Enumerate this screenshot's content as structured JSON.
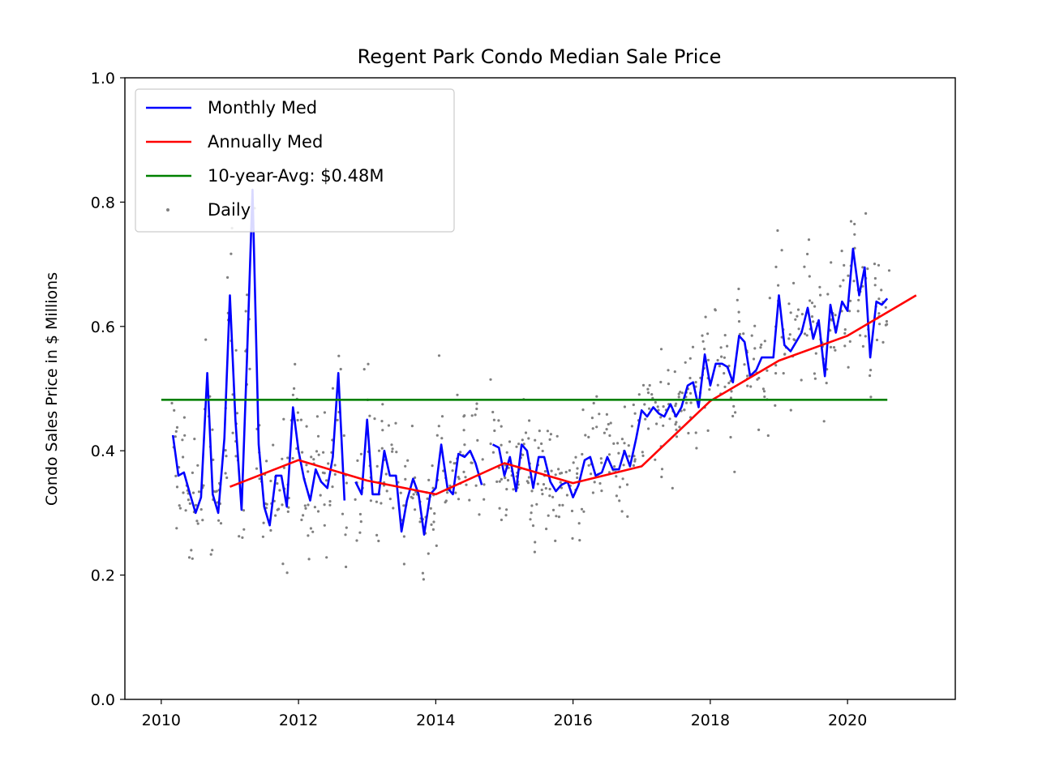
{
  "chart_data": {
    "type": "line",
    "title": "Regent Park Condo Median Sale Price",
    "xlabel": "",
    "ylabel": "Condo Sales Price in $ Millions",
    "xlim": [
      2009.47,
      2021.57
    ],
    "ylim": [
      0.0,
      1.0
    ],
    "x_ticks": [
      2010,
      2012,
      2014,
      2016,
      2018,
      2020
    ],
    "y_ticks": [
      0.0,
      0.2,
      0.4,
      0.6,
      0.8,
      1.0
    ],
    "x_tick_labels": [
      "2010",
      "2012",
      "2014",
      "2016",
      "2018",
      "2020"
    ],
    "y_tick_labels": [
      "0.0",
      "0.2",
      "0.4",
      "0.6",
      "0.8",
      "1.0"
    ],
    "legend_position": "top-left",
    "grid": false,
    "series": [
      {
        "name": "Monthly Med",
        "type": "line",
        "color": "#0000ff",
        "points": [
          [
            2010.17,
            0.425
          ],
          [
            2010.25,
            0.36
          ],
          [
            2010.33,
            0.365
          ],
          [
            2010.42,
            0.33
          ],
          [
            2010.5,
            0.3
          ],
          [
            2010.58,
            0.325
          ],
          [
            2010.67,
            0.525
          ],
          [
            2010.75,
            0.33
          ],
          [
            2010.83,
            0.3
          ],
          [
            2010.92,
            0.42
          ],
          [
            2011.0,
            0.65
          ],
          [
            2011.08,
            0.45
          ],
          [
            2011.17,
            0.305
          ],
          [
            2011.25,
            0.55
          ],
          [
            2011.33,
            0.82
          ],
          [
            2011.42,
            0.41
          ],
          [
            2011.5,
            0.31
          ],
          [
            2011.58,
            0.28
          ],
          [
            2011.67,
            0.36
          ],
          [
            2011.75,
            0.36
          ],
          [
            2011.83,
            0.31
          ],
          [
            2011.92,
            0.47
          ],
          [
            2012.0,
            0.4
          ],
          [
            2012.08,
            0.355
          ],
          [
            2012.17,
            0.32
          ],
          [
            2012.25,
            0.37
          ],
          [
            2012.33,
            0.35
          ],
          [
            2012.42,
            0.34
          ],
          [
            2012.5,
            0.39
          ],
          [
            2012.58,
            0.525
          ],
          [
            2012.67,
            0.32
          ],
          null,
          [
            2012.83,
            0.35
          ],
          [
            2012.92,
            0.33
          ],
          [
            2013.0,
            0.45
          ],
          [
            2013.08,
            0.33
          ],
          [
            2013.17,
            0.33
          ],
          [
            2013.25,
            0.4
          ],
          [
            2013.33,
            0.36
          ],
          [
            2013.42,
            0.36
          ],
          [
            2013.5,
            0.27
          ],
          [
            2013.58,
            0.32
          ],
          [
            2013.67,
            0.355
          ],
          [
            2013.75,
            0.33
          ],
          [
            2013.83,
            0.265
          ],
          [
            2013.92,
            0.33
          ],
          [
            2014.0,
            0.34
          ],
          [
            2014.08,
            0.41
          ],
          [
            2014.17,
            0.34
          ],
          [
            2014.25,
            0.33
          ],
          [
            2014.33,
            0.395
          ],
          [
            2014.42,
            0.39
          ],
          [
            2014.5,
            0.4
          ],
          [
            2014.58,
            0.38
          ],
          [
            2014.67,
            0.345
          ],
          null,
          [
            2014.83,
            0.41
          ],
          [
            2014.92,
            0.405
          ],
          [
            2015.0,
            0.36
          ],
          [
            2015.08,
            0.39
          ],
          [
            2015.17,
            0.335
          ],
          [
            2015.25,
            0.41
          ],
          [
            2015.33,
            0.4
          ],
          [
            2015.42,
            0.34
          ],
          [
            2015.5,
            0.39
          ],
          [
            2015.58,
            0.39
          ],
          [
            2015.67,
            0.35
          ],
          [
            2015.75,
            0.335
          ],
          [
            2015.83,
            0.345
          ],
          [
            2015.92,
            0.35
          ],
          [
            2016.0,
            0.325
          ],
          [
            2016.08,
            0.345
          ],
          [
            2016.17,
            0.385
          ],
          [
            2016.25,
            0.39
          ],
          [
            2016.33,
            0.36
          ],
          [
            2016.42,
            0.365
          ],
          [
            2016.5,
            0.39
          ],
          [
            2016.58,
            0.37
          ],
          [
            2016.67,
            0.37
          ],
          [
            2016.75,
            0.4
          ],
          [
            2016.83,
            0.375
          ],
          [
            2016.92,
            0.42
          ],
          [
            2017.0,
            0.465
          ],
          [
            2017.08,
            0.455
          ],
          [
            2017.17,
            0.47
          ],
          [
            2017.25,
            0.46
          ],
          [
            2017.33,
            0.455
          ],
          [
            2017.42,
            0.475
          ],
          [
            2017.5,
            0.455
          ],
          [
            2017.58,
            0.47
          ],
          [
            2017.67,
            0.505
          ],
          [
            2017.75,
            0.51
          ],
          [
            2017.83,
            0.47
          ],
          [
            2017.92,
            0.555
          ],
          [
            2018.0,
            0.505
          ],
          [
            2018.08,
            0.54
          ],
          [
            2018.17,
            0.54
          ],
          [
            2018.25,
            0.535
          ],
          [
            2018.33,
            0.51
          ],
          [
            2018.42,
            0.585
          ],
          [
            2018.5,
            0.575
          ],
          [
            2018.58,
            0.52
          ],
          [
            2018.67,
            0.53
          ],
          [
            2018.75,
            0.55
          ],
          [
            2018.83,
            0.55
          ],
          [
            2018.92,
            0.55
          ],
          [
            2019.0,
            0.65
          ],
          [
            2019.08,
            0.57
          ],
          [
            2019.17,
            0.56
          ],
          [
            2019.25,
            0.575
          ],
          [
            2019.33,
            0.59
          ],
          [
            2019.42,
            0.63
          ],
          [
            2019.5,
            0.58
          ],
          [
            2019.58,
            0.61
          ],
          [
            2019.67,
            0.52
          ],
          [
            2019.75,
            0.635
          ],
          [
            2019.83,
            0.59
          ],
          [
            2019.92,
            0.64
          ],
          [
            2020.0,
            0.625
          ],
          [
            2020.08,
            0.725
          ],
          [
            2020.17,
            0.65
          ],
          [
            2020.25,
            0.695
          ],
          [
            2020.33,
            0.55
          ],
          [
            2020.42,
            0.64
          ],
          [
            2020.5,
            0.635
          ],
          [
            2020.58,
            0.645
          ]
        ]
      },
      {
        "name": "Annually Med",
        "type": "line",
        "color": "#ff0000",
        "points": [
          [
            2011.0,
            0.342
          ],
          [
            2012.0,
            0.385
          ],
          [
            2013.0,
            0.352
          ],
          [
            2014.0,
            0.33
          ],
          [
            2015.0,
            0.38
          ],
          [
            2016.0,
            0.348
          ],
          [
            2017.0,
            0.375
          ],
          [
            2018.0,
            0.48
          ],
          [
            2019.0,
            0.545
          ],
          [
            2020.0,
            0.585
          ],
          [
            2021.0,
            0.65
          ]
        ]
      },
      {
        "name": "10-year-Avg: $0.48M",
        "type": "line",
        "color": "#008000",
        "points": [
          [
            2010.0,
            0.482
          ],
          [
            2020.58,
            0.482
          ]
        ]
      },
      {
        "name": "Daily",
        "type": "scatter",
        "color": "#808080"
      }
    ]
  }
}
